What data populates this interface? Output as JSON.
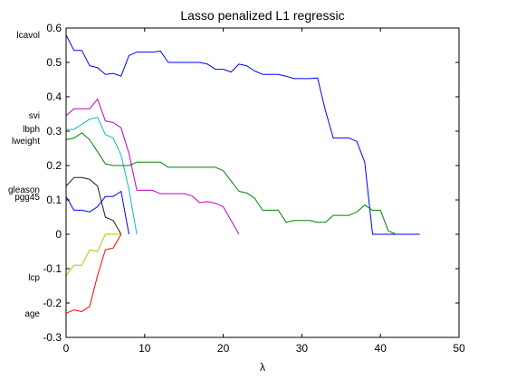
{
  "chart_data": {
    "type": "line",
    "title": "Lasso penalized L1 regressic",
    "xlabel": "λ",
    "ylabel": "",
    "xlim": [
      0,
      50
    ],
    "ylim": [
      -0.3,
      0.6
    ],
    "xticks": [
      0,
      10,
      20,
      30,
      40,
      50
    ],
    "yticks": [
      -0.3,
      -0.2,
      -0.1,
      0,
      0.1,
      0.2,
      0.3,
      0.4,
      0.5,
      0.6
    ],
    "grid": false,
    "legend": "none",
    "series": [
      {
        "name": "lcavol",
        "color": "#0000ff",
        "x": [
          0,
          1,
          2,
          3,
          4,
          5,
          6,
          7,
          8,
          9,
          10,
          11,
          12,
          13,
          14,
          15,
          16,
          17,
          18,
          19,
          20,
          21,
          22,
          23,
          24,
          25,
          26,
          27,
          28,
          29,
          30,
          31,
          32,
          33,
          34,
          35,
          36,
          37,
          38,
          39,
          40,
          41,
          42,
          43,
          44,
          45
        ],
        "values": [
          0.58,
          0.535,
          0.535,
          0.49,
          0.485,
          0.465,
          0.468,
          0.46,
          0.52,
          0.53,
          0.53,
          0.53,
          0.533,
          0.5,
          0.5,
          0.5,
          0.5,
          0.5,
          0.495,
          0.48,
          0.48,
          0.472,
          0.495,
          0.49,
          0.475,
          0.465,
          0.465,
          0.465,
          0.46,
          0.453,
          0.453,
          0.453,
          0.455,
          0.36,
          0.28,
          0.28,
          0.28,
          0.27,
          0.21,
          0,
          0,
          0,
          0,
          0,
          0,
          0
        ]
      },
      {
        "name": "svi",
        "color": "#bf00bf",
        "x": [
          0,
          1,
          2,
          3,
          4,
          5,
          6,
          7,
          8,
          9,
          10,
          11,
          12,
          13,
          14,
          15,
          16,
          17,
          18,
          19,
          20,
          21,
          22
        ],
        "values": [
          0.345,
          0.365,
          0.365,
          0.365,
          0.393,
          0.33,
          0.325,
          0.31,
          0.235,
          0.128,
          0.128,
          0.128,
          0.118,
          0.118,
          0.118,
          0.118,
          0.112,
          0.092,
          0.095,
          0.09,
          0.08,
          0.04,
          0
        ]
      },
      {
        "name": "lbph",
        "color": "#00bfbf",
        "x": [
          0,
          1,
          2,
          3,
          4,
          5,
          6,
          7,
          8,
          9
        ],
        "values": [
          0.305,
          0.305,
          0.32,
          0.335,
          0.34,
          0.29,
          0.28,
          0.23,
          0.13,
          0
        ]
      },
      {
        "name": "lweight",
        "color": "#008000",
        "x": [
          0,
          1,
          2,
          3,
          4,
          5,
          6,
          7,
          8,
          9,
          10,
          11,
          12,
          13,
          14,
          15,
          16,
          17,
          18,
          19,
          20,
          21,
          22,
          23,
          24,
          25,
          26,
          27,
          28,
          29,
          30,
          31,
          32,
          33,
          34,
          35,
          36,
          37,
          38,
          39,
          40,
          41,
          42
        ],
        "values": [
          0.275,
          0.28,
          0.295,
          0.275,
          0.24,
          0.205,
          0.2,
          0.2,
          0.2,
          0.21,
          0.21,
          0.21,
          0.21,
          0.195,
          0.195,
          0.195,
          0.195,
          0.195,
          0.195,
          0.195,
          0.185,
          0.155,
          0.125,
          0.12,
          0.105,
          0.07,
          0.07,
          0.07,
          0.035,
          0.04,
          0.04,
          0.04,
          0.035,
          0.035,
          0.055,
          0.055,
          0.055,
          0.065,
          0.085,
          0.07,
          0.07,
          0.01,
          0
        ]
      },
      {
        "name": "gleason",
        "color": "#1a1a1a",
        "x": [
          0,
          1,
          2,
          3,
          4,
          5,
          6,
          7
        ],
        "values": [
          0.14,
          0.165,
          0.165,
          0.16,
          0.14,
          0.05,
          0.04,
          0
        ]
      },
      {
        "name": "pgg45",
        "color": "#0000ff",
        "x": [
          0,
          1,
          2,
          3,
          4,
          5,
          6,
          7,
          8
        ],
        "values": [
          0.11,
          0.07,
          0.07,
          0.065,
          0.08,
          0.11,
          0.11,
          0.125,
          0
        ]
      },
      {
        "name": "lcp",
        "color": "#bfbf00",
        "x": [
          0,
          1,
          2,
          3,
          4,
          5,
          6,
          7
        ],
        "values": [
          -0.12,
          -0.09,
          -0.09,
          -0.045,
          -0.05,
          0,
          0,
          0
        ]
      },
      {
        "name": "age",
        "color": "#ff0000",
        "x": [
          0,
          1,
          2,
          3,
          4,
          5,
          6,
          7
        ],
        "values": [
          -0.23,
          -0.22,
          -0.225,
          -0.21,
          -0.12,
          -0.045,
          -0.04,
          0
        ]
      }
    ]
  }
}
